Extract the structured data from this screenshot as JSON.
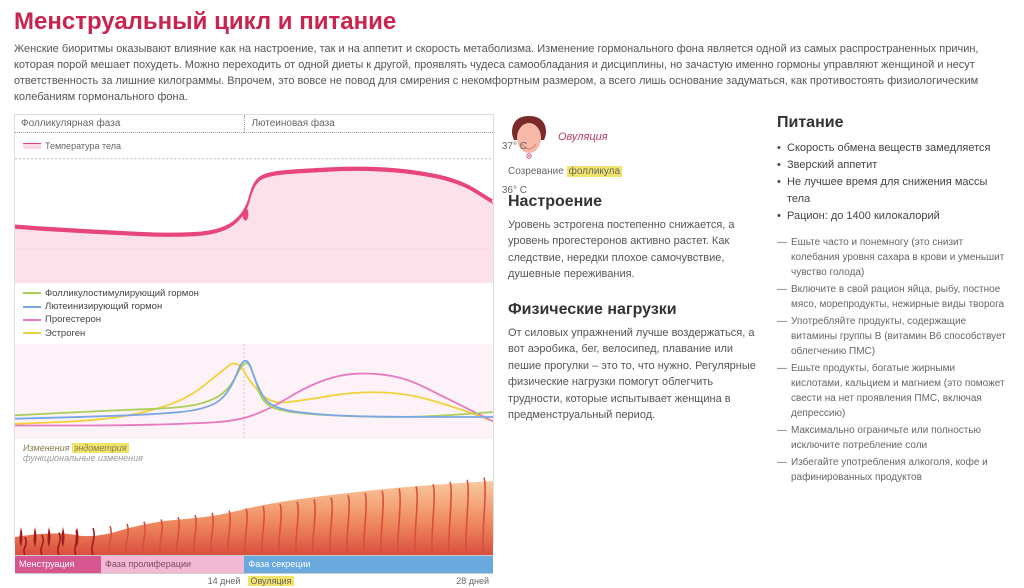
{
  "colors": {
    "title": "#c8244f",
    "temp_line": "#e7457e",
    "temp_fill": "#fbd9e5",
    "fsh": "#a8cf5a",
    "lh": "#7aa6e8",
    "progesterone": "#e879c0",
    "estrogen": "#f2d23c",
    "highlight": "#f2e36b",
    "mens_bg": "#d7568f",
    "prolif_bg": "#f3b9d4",
    "secret_bg": "#6aa9de",
    "endo_top": "#f9c9a0",
    "endo_mid": "#f08b5f",
    "endo_bot": "#d94f3f",
    "blood": "#a01c1c",
    "face_fill": "#f6b8a7",
    "face_hair": "#7a2a2a"
  },
  "title": "Менструальный цикл и питание",
  "intro": "Женские биоритмы оказывают влияние как на настроение, так и на аппетит и скорость метаболизма. Изменение гормонального фона является одной из самых распространенных причин, которая порой мешает похудеть. Можно переходить от одной диеты к другой, проявлять чудеса самообладания и дисциплины, но зачастую именно гормоны управляют женщиной и несут ответственность за лишние килограммы. Впрочем, это вовсе не повод для смирения с некомфортным размером, а всего лишь основание задуматься, как противостоять физиологическим колебаниям гормонального фона.",
  "chart": {
    "phases": {
      "follicular": "Фолликулярная фаза",
      "luteal": "Лютеиновая фаза"
    },
    "temp_label": "Температура тела",
    "temp_37": "37° С",
    "temp_36": "36° С",
    "temp_points": [
      [
        0,
        0.35
      ],
      [
        3,
        0.32
      ],
      [
        6,
        0.3
      ],
      [
        9,
        0.28
      ],
      [
        12,
        0.3
      ],
      [
        13.5,
        0.45
      ],
      [
        14,
        0.72
      ],
      [
        15,
        0.78
      ],
      [
        17,
        0.8
      ],
      [
        20,
        0.82
      ],
      [
        23,
        0.8
      ],
      [
        26,
        0.72
      ],
      [
        28,
        0.55
      ]
    ],
    "hormones": {
      "fsh": {
        "label": "Фолликулостимулирующий гормон",
        "points": [
          [
            0,
            0.22
          ],
          [
            3,
            0.25
          ],
          [
            6,
            0.28
          ],
          [
            9,
            0.3
          ],
          [
            11,
            0.35
          ],
          [
            12.5,
            0.5
          ],
          [
            13.5,
            0.9
          ],
          [
            14,
            0.7
          ],
          [
            14.5,
            0.35
          ],
          [
            16,
            0.25
          ],
          [
            20,
            0.2
          ],
          [
            24,
            0.2
          ],
          [
            28,
            0.26
          ]
        ]
      },
      "lh": {
        "label": "Лютеинизирующий гормон",
        "points": [
          [
            0,
            0.18
          ],
          [
            4,
            0.2
          ],
          [
            8,
            0.23
          ],
          [
            11,
            0.28
          ],
          [
            12.5,
            0.45
          ],
          [
            13.5,
            0.98
          ],
          [
            14.2,
            0.55
          ],
          [
            15,
            0.3
          ],
          [
            18,
            0.22
          ],
          [
            22,
            0.2
          ],
          [
            28,
            0.2
          ]
        ]
      },
      "prog": {
        "label": "Прогестерон",
        "points": [
          [
            0,
            0.1
          ],
          [
            6,
            0.1
          ],
          [
            10,
            0.12
          ],
          [
            13,
            0.15
          ],
          [
            15,
            0.3
          ],
          [
            17,
            0.55
          ],
          [
            19,
            0.7
          ],
          [
            21,
            0.72
          ],
          [
            23,
            0.65
          ],
          [
            25,
            0.45
          ],
          [
            27,
            0.25
          ],
          [
            28,
            0.15
          ]
        ]
      },
      "estr": {
        "label": "Эстроген",
        "points": [
          [
            0,
            0.12
          ],
          [
            4,
            0.15
          ],
          [
            7,
            0.22
          ],
          [
            10,
            0.4
          ],
          [
            12,
            0.72
          ],
          [
            13,
            0.88
          ],
          [
            13.8,
            0.6
          ],
          [
            15,
            0.35
          ],
          [
            17,
            0.4
          ],
          [
            20,
            0.5
          ],
          [
            23,
            0.48
          ],
          [
            26,
            0.3
          ],
          [
            28,
            0.15
          ]
        ]
      }
    },
    "endo_label_1": "Изменения ",
    "endo_label_hl": "эндометрия",
    "endo_label_2": "функциональные изменения",
    "segments": {
      "mens": "Менструация",
      "prolif": "Фаза пролиферации",
      "secret": "Фаза секреции"
    },
    "days": {
      "d14": "14 дней",
      "ovulation": "Овуляция",
      "d28": "28 дней"
    }
  },
  "mid": {
    "ovulation_label": "Овуляция",
    "follicle_1": "Созревание ",
    "follicle_hl": "фолликула",
    "mood_h": "Настроение",
    "mood_p": "Уровень эстрогена постепенно снижается, а уровень прогестеронов активно растет. Как следствие, нередки плохое самочувствие, душевные переживания.",
    "phys_h": "Физические нагрузки",
    "phys_p": "От силовых упражнений лучше воздержаться, а вот аэробика, бег, велосипед, плавание или пешие прогулки – это то, что нужно. Регулярные физические нагрузки помогут облегчить трудности, которые испытывает женщина в предменструальный период."
  },
  "right": {
    "h": "Питание",
    "bullets": [
      "Скорость обмена веществ замедляется",
      "Зверский аппетит",
      "Не лучшее время для снижения массы тела",
      "Рацион: до 1400 килокалорий"
    ],
    "tips": [
      "Ешьте часто и понемногу (это снизит колебания уровня сахара в крови и уменьшит чувство голода)",
      "Включите в свой рацион яйца, рыбу, постное мясо, морепродукты, нежирные виды творога",
      "Употребляйте продукты, содержащие витамины группы В (витамин В6 способствует облегчению ПМС)",
      "Ешьте продукты, богатые жирными кислотами, кальцием и магнием (это поможет свести на нет проявления ПМС, включая депрессию)",
      "Максимально ограничьте или полностью исключите потребление соли",
      "Избегайте употребления алкоголя, кофе и рафинированных продуктов"
    ]
  }
}
